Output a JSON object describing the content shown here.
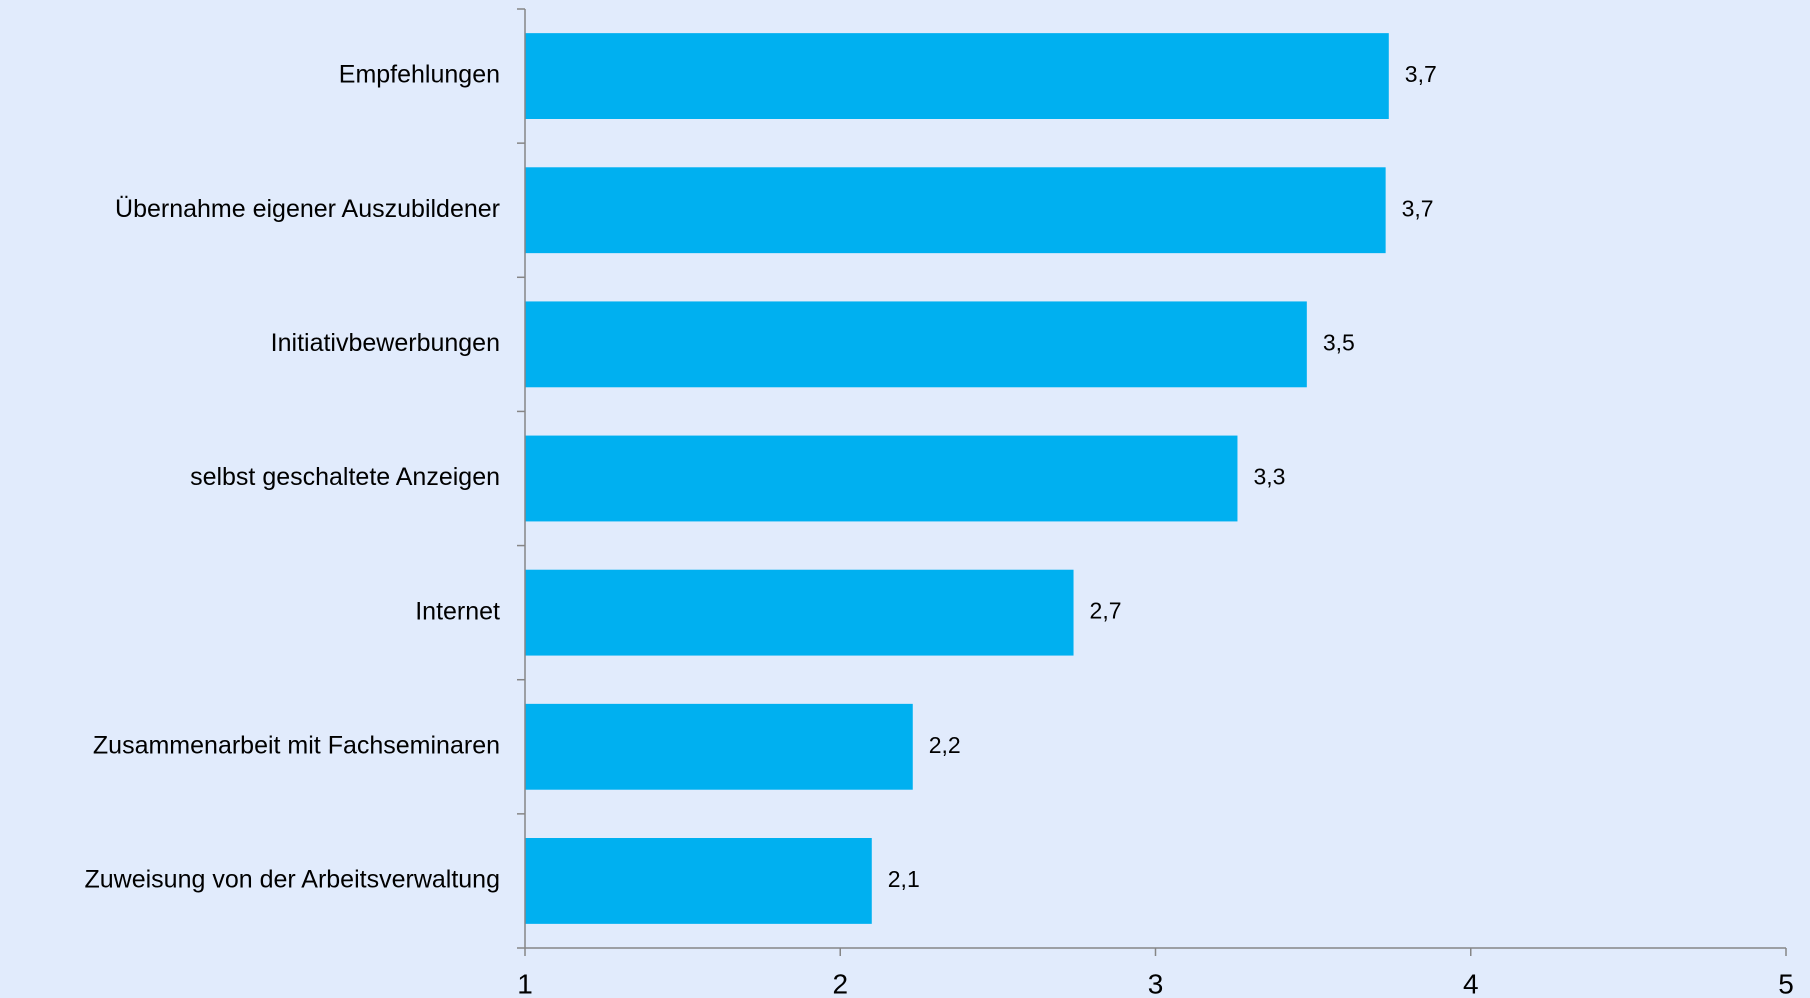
{
  "chart_data": {
    "type": "barh",
    "categories": [
      "Empfehlungen",
      "Übernahme eigener Auszubildener",
      "Initiativbewerbungen",
      "selbst geschaltete Anzeigen",
      "Internet",
      "Zusammenarbeit mit Fachseminaren",
      "Zuweisung von der Arbeitsverwaltung"
    ],
    "values": [
      3.74,
      3.73,
      3.48,
      3.26,
      2.74,
      2.23,
      2.1
    ],
    "value_labels": [
      "3,7",
      "3,7",
      "3,5",
      "3,3",
      "2,7",
      "2,2",
      "2,1"
    ],
    "color": "#00b0f0",
    "xlim": [
      1,
      5
    ],
    "xticks": [
      1,
      2,
      3,
      4,
      5
    ]
  }
}
